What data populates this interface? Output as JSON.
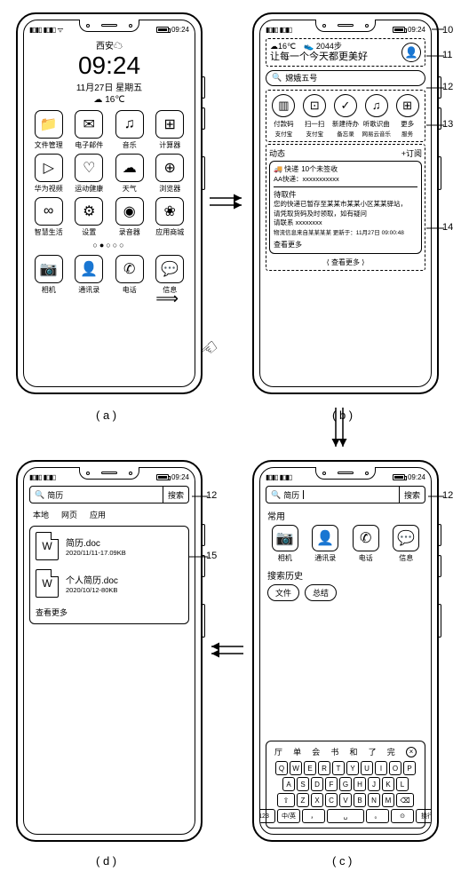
{
  "status": {
    "time": "09:24",
    "signal": "▮▮▮▮",
    "wifi": "⊚"
  },
  "screenA": {
    "city": "西安☁",
    "clock": "09:24",
    "date": "11月27日 星期五",
    "weather": "☁ 16℃",
    "apps": [
      {
        "icon": "📁",
        "label": "文件管理"
      },
      {
        "icon": "✉",
        "label": "电子邮件"
      },
      {
        "icon": "♫",
        "label": "音乐"
      },
      {
        "icon": "⊞",
        "label": "计算器"
      },
      {
        "icon": "▷",
        "label": "华为视频"
      },
      {
        "icon": "♡",
        "label": "运动健康"
      },
      {
        "icon": "☁",
        "label": "天气"
      },
      {
        "icon": "⊕",
        "label": "浏览器"
      },
      {
        "icon": "∞",
        "label": "智慧生活"
      },
      {
        "icon": "⚙",
        "label": "设置"
      },
      {
        "icon": "◉",
        "label": "录音器"
      },
      {
        "icon": "❀",
        "label": "应用商城"
      }
    ],
    "dock": [
      {
        "icon": "📷",
        "label": "相机"
      },
      {
        "icon": "👤",
        "label": "通讯录"
      },
      {
        "icon": "✆",
        "label": "电话"
      },
      {
        "icon": "💬",
        "label": "信息"
      }
    ],
    "dots": "○●○○○",
    "swipe": "⟹"
  },
  "screenB": {
    "topline1": "☁16℃　👟 2044步",
    "topline2": "让每一个今天都更美好",
    "search_ph": "嫦娥五号",
    "circles": [
      {
        "icon": "▥",
        "label": "付款码",
        "sub": "支付宝"
      },
      {
        "icon": "⊡",
        "label": "扫一扫",
        "sub": "支付宝"
      },
      {
        "icon": "✓",
        "label": "新建待办",
        "sub": "备忘录"
      },
      {
        "icon": "♫",
        "label": "听歌识曲",
        "sub": "网易云音乐"
      },
      {
        "icon": "⊞",
        "label": "更多",
        "sub": "服务"
      }
    ],
    "feed_title": "动态",
    "feed_sub": "+订阅",
    "card_tag": "🚚 快递",
    "card_count": "10个未签收",
    "card_from": "AA快递：xxxxxxxxxxx",
    "card_status": "待取件",
    "card_body1": "您的快递已暂存至某某市某某小区某某驿站，",
    "card_body2": "请凭取货码及时领取，如有疑问",
    "card_body3": "请联系 xxxxxxxx",
    "card_footer": "物流信息来自某某某某 更新于：11月27日 09:00:48",
    "card_more": "查看更多",
    "feed_more": "⟨ 查看更多 ⟩"
  },
  "screenC": {
    "query": "简历",
    "btn": "搜索",
    "sec1": "常用",
    "apps": [
      {
        "icon": "📷",
        "label": "相机"
      },
      {
        "icon": "👤",
        "label": "通讯录"
      },
      {
        "icon": "✆",
        "label": "电话"
      },
      {
        "icon": "💬",
        "label": "信息"
      }
    ],
    "sec2": "搜索历史",
    "chips": [
      "文件",
      "总结"
    ],
    "suggest": [
      "厅",
      "单",
      "会",
      "书",
      "和",
      "了",
      "完"
    ],
    "row1": [
      "Q",
      "W",
      "E",
      "R",
      "T",
      "Y",
      "U",
      "I",
      "O",
      "P"
    ],
    "row2": [
      "A",
      "S",
      "D",
      "F",
      "G",
      "H",
      "J",
      "K",
      "L"
    ],
    "row3_shift": "⇧",
    "row3": [
      "Z",
      "X",
      "C",
      "V",
      "B",
      "N",
      "M"
    ],
    "row3_del": "⌫",
    "row4": [
      "123",
      "中/英",
      "，",
      "␣",
      "。",
      "⊙",
      "换行"
    ]
  },
  "screenD": {
    "query": "简历",
    "btn": "搜索",
    "tabs": [
      "本地",
      "网页",
      "应用"
    ],
    "files": [
      {
        "icon": "W",
        "name": "简历.doc",
        "meta": "2020/11/11-17.09KB"
      },
      {
        "icon": "W",
        "name": "个人简历.doc",
        "meta": "2020/10/12-80KB"
      }
    ],
    "more": "查看更多"
  },
  "callouts": {
    "c10": "10",
    "c11": "11",
    "c12": "12",
    "c13": "13",
    "c14": "14",
    "c15": "15"
  },
  "labels": {
    "a": "( a )",
    "b": "( b )",
    "c": "( c )",
    "d": "( d )"
  }
}
